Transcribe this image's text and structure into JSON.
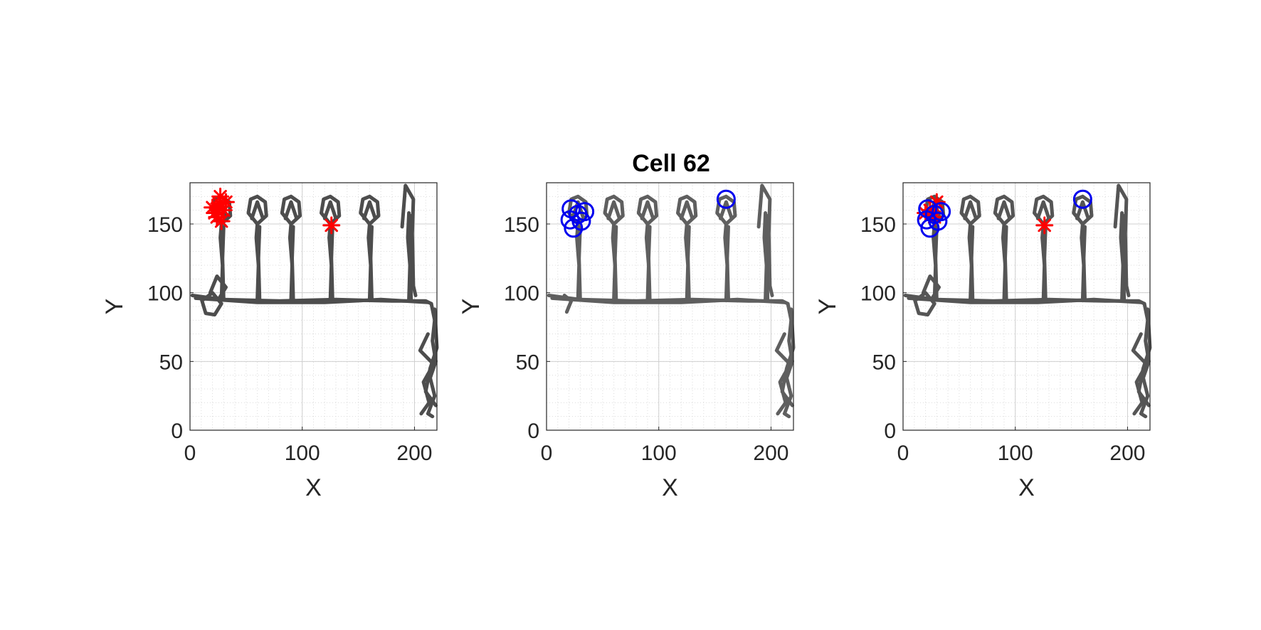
{
  "figure": {
    "title": "Cell 62"
  },
  "chart_data": [
    {
      "type": "scatter",
      "panel": "left",
      "xlabel": "X",
      "ylabel": "Y",
      "xlim": [
        0,
        220
      ],
      "ylim": [
        0,
        180
      ],
      "xticks": [
        0,
        100,
        200
      ],
      "yticks": [
        0,
        50,
        100,
        150
      ],
      "grid": true,
      "minor_grid": true,
      "trajectory_color": "#4d4d4d",
      "series": [
        {
          "marker": "asterisk",
          "color": "#ff0000",
          "points": [
            [
              22,
              158
            ],
            [
              26,
              165
            ],
            [
              30,
              160
            ],
            [
              24,
              155
            ],
            [
              28,
              152
            ],
            [
              20,
              162
            ],
            [
              32,
              166
            ],
            [
              25,
              160
            ],
            [
              27,
              170
            ],
            [
              126,
              149
            ]
          ]
        }
      ]
    },
    {
      "type": "scatter",
      "panel": "middle",
      "title": "Cell 62",
      "xlabel": "X",
      "ylabel": "Y",
      "xlim": [
        0,
        220
      ],
      "ylim": [
        0,
        180
      ],
      "xticks": [
        0,
        100,
        200
      ],
      "yticks": [
        0,
        50,
        100,
        150
      ],
      "grid": true,
      "minor_grid": true,
      "trajectory_color": "#5f5f5f",
      "series": [
        {
          "marker": "circle",
          "color": "#0000ee",
          "points": [
            [
              22,
              161
            ],
            [
              28,
              157
            ],
            [
              34,
              159
            ],
            [
              31,
              152
            ],
            [
              21,
              153
            ],
            [
              24,
              147
            ],
            [
              160,
              168
            ]
          ]
        }
      ]
    },
    {
      "type": "scatter",
      "panel": "right",
      "xlabel": "X",
      "ylabel": "Y",
      "xlim": [
        0,
        220
      ],
      "ylim": [
        0,
        180
      ],
      "xticks": [
        0,
        100,
        200
      ],
      "yticks": [
        0,
        50,
        100,
        150
      ],
      "grid": true,
      "minor_grid": true,
      "trajectory_color": "#555555",
      "series": [
        {
          "marker": "asterisk",
          "color": "#ff0000",
          "points": [
            [
              24,
              160
            ],
            [
              30,
              166
            ],
            [
              28,
              155
            ],
            [
              20,
              158
            ],
            [
              126,
              149
            ]
          ]
        },
        {
          "marker": "circle",
          "color": "#0000ee",
          "points": [
            [
              22,
              161
            ],
            [
              28,
              157
            ],
            [
              34,
              159
            ],
            [
              31,
              152
            ],
            [
              21,
              153
            ],
            [
              24,
              147
            ],
            [
              160,
              168
            ]
          ]
        }
      ]
    }
  ]
}
